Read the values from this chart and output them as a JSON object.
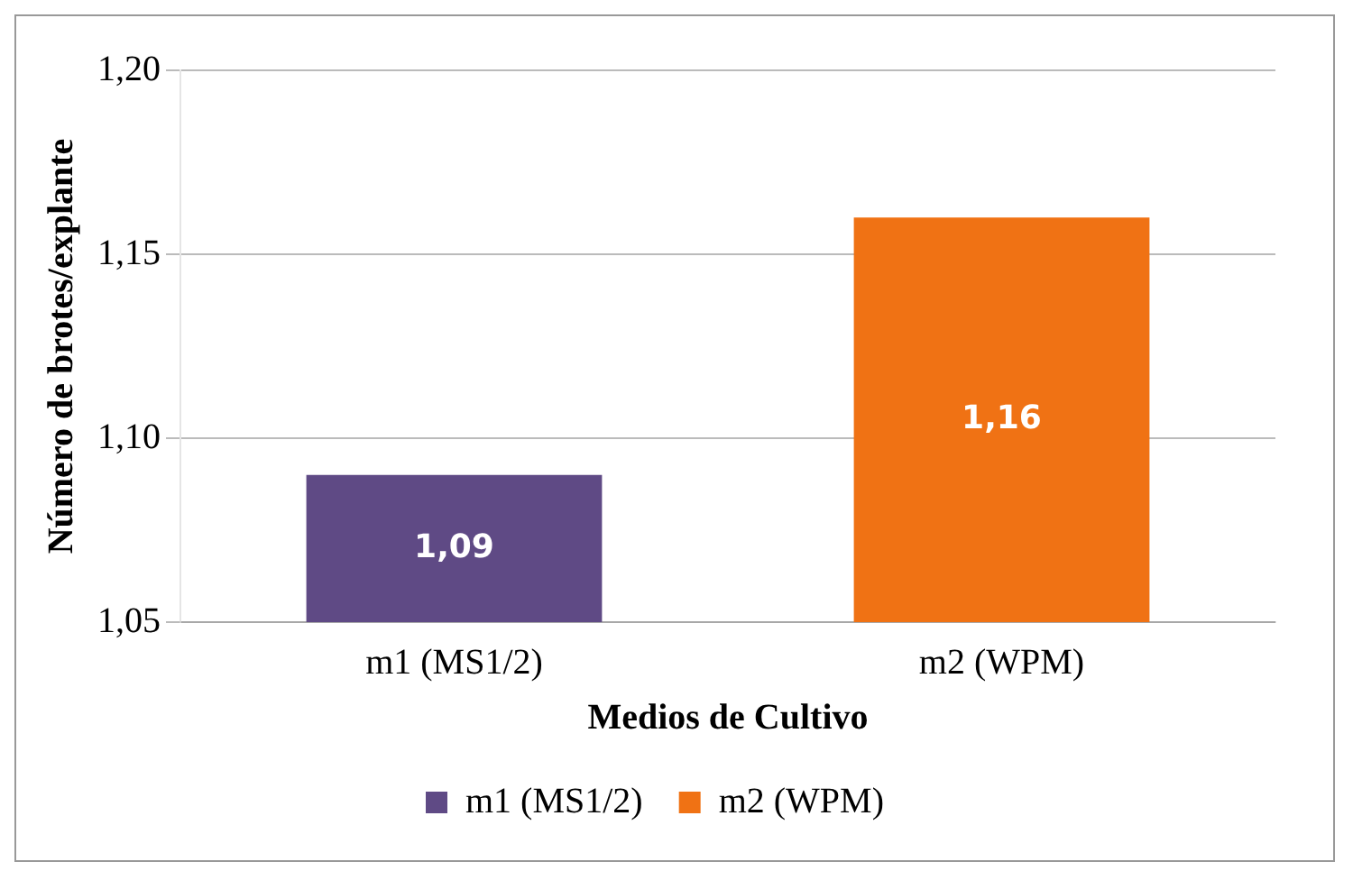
{
  "chart_data": {
    "type": "bar",
    "xlabel": "Medios de Cultivo",
    "ylabel": "Número de brotes/explante",
    "categories": [
      "m1 (MS1/2)",
      "m2 (WPM)"
    ],
    "series": [
      {
        "name": "m1 (MS1/2)",
        "color": "#5f4a85",
        "values": [
          1.09,
          null
        ],
        "value_labels": [
          "1,09",
          null
        ]
      },
      {
        "name": "m2 (WPM)",
        "color": "#f07214",
        "values": [
          null,
          1.16
        ],
        "value_labels": [
          null,
          "1,16"
        ]
      }
    ],
    "ylim": [
      1.05,
      1.2
    ],
    "yticks": [
      {
        "value": 1.05,
        "label": "1,05"
      },
      {
        "value": 1.1,
        "label": "1,10"
      },
      {
        "value": 1.15,
        "label": "1,15"
      },
      {
        "value": 1.2,
        "label": "1,20"
      }
    ],
    "grid": "y",
    "legend": "bottom"
  }
}
